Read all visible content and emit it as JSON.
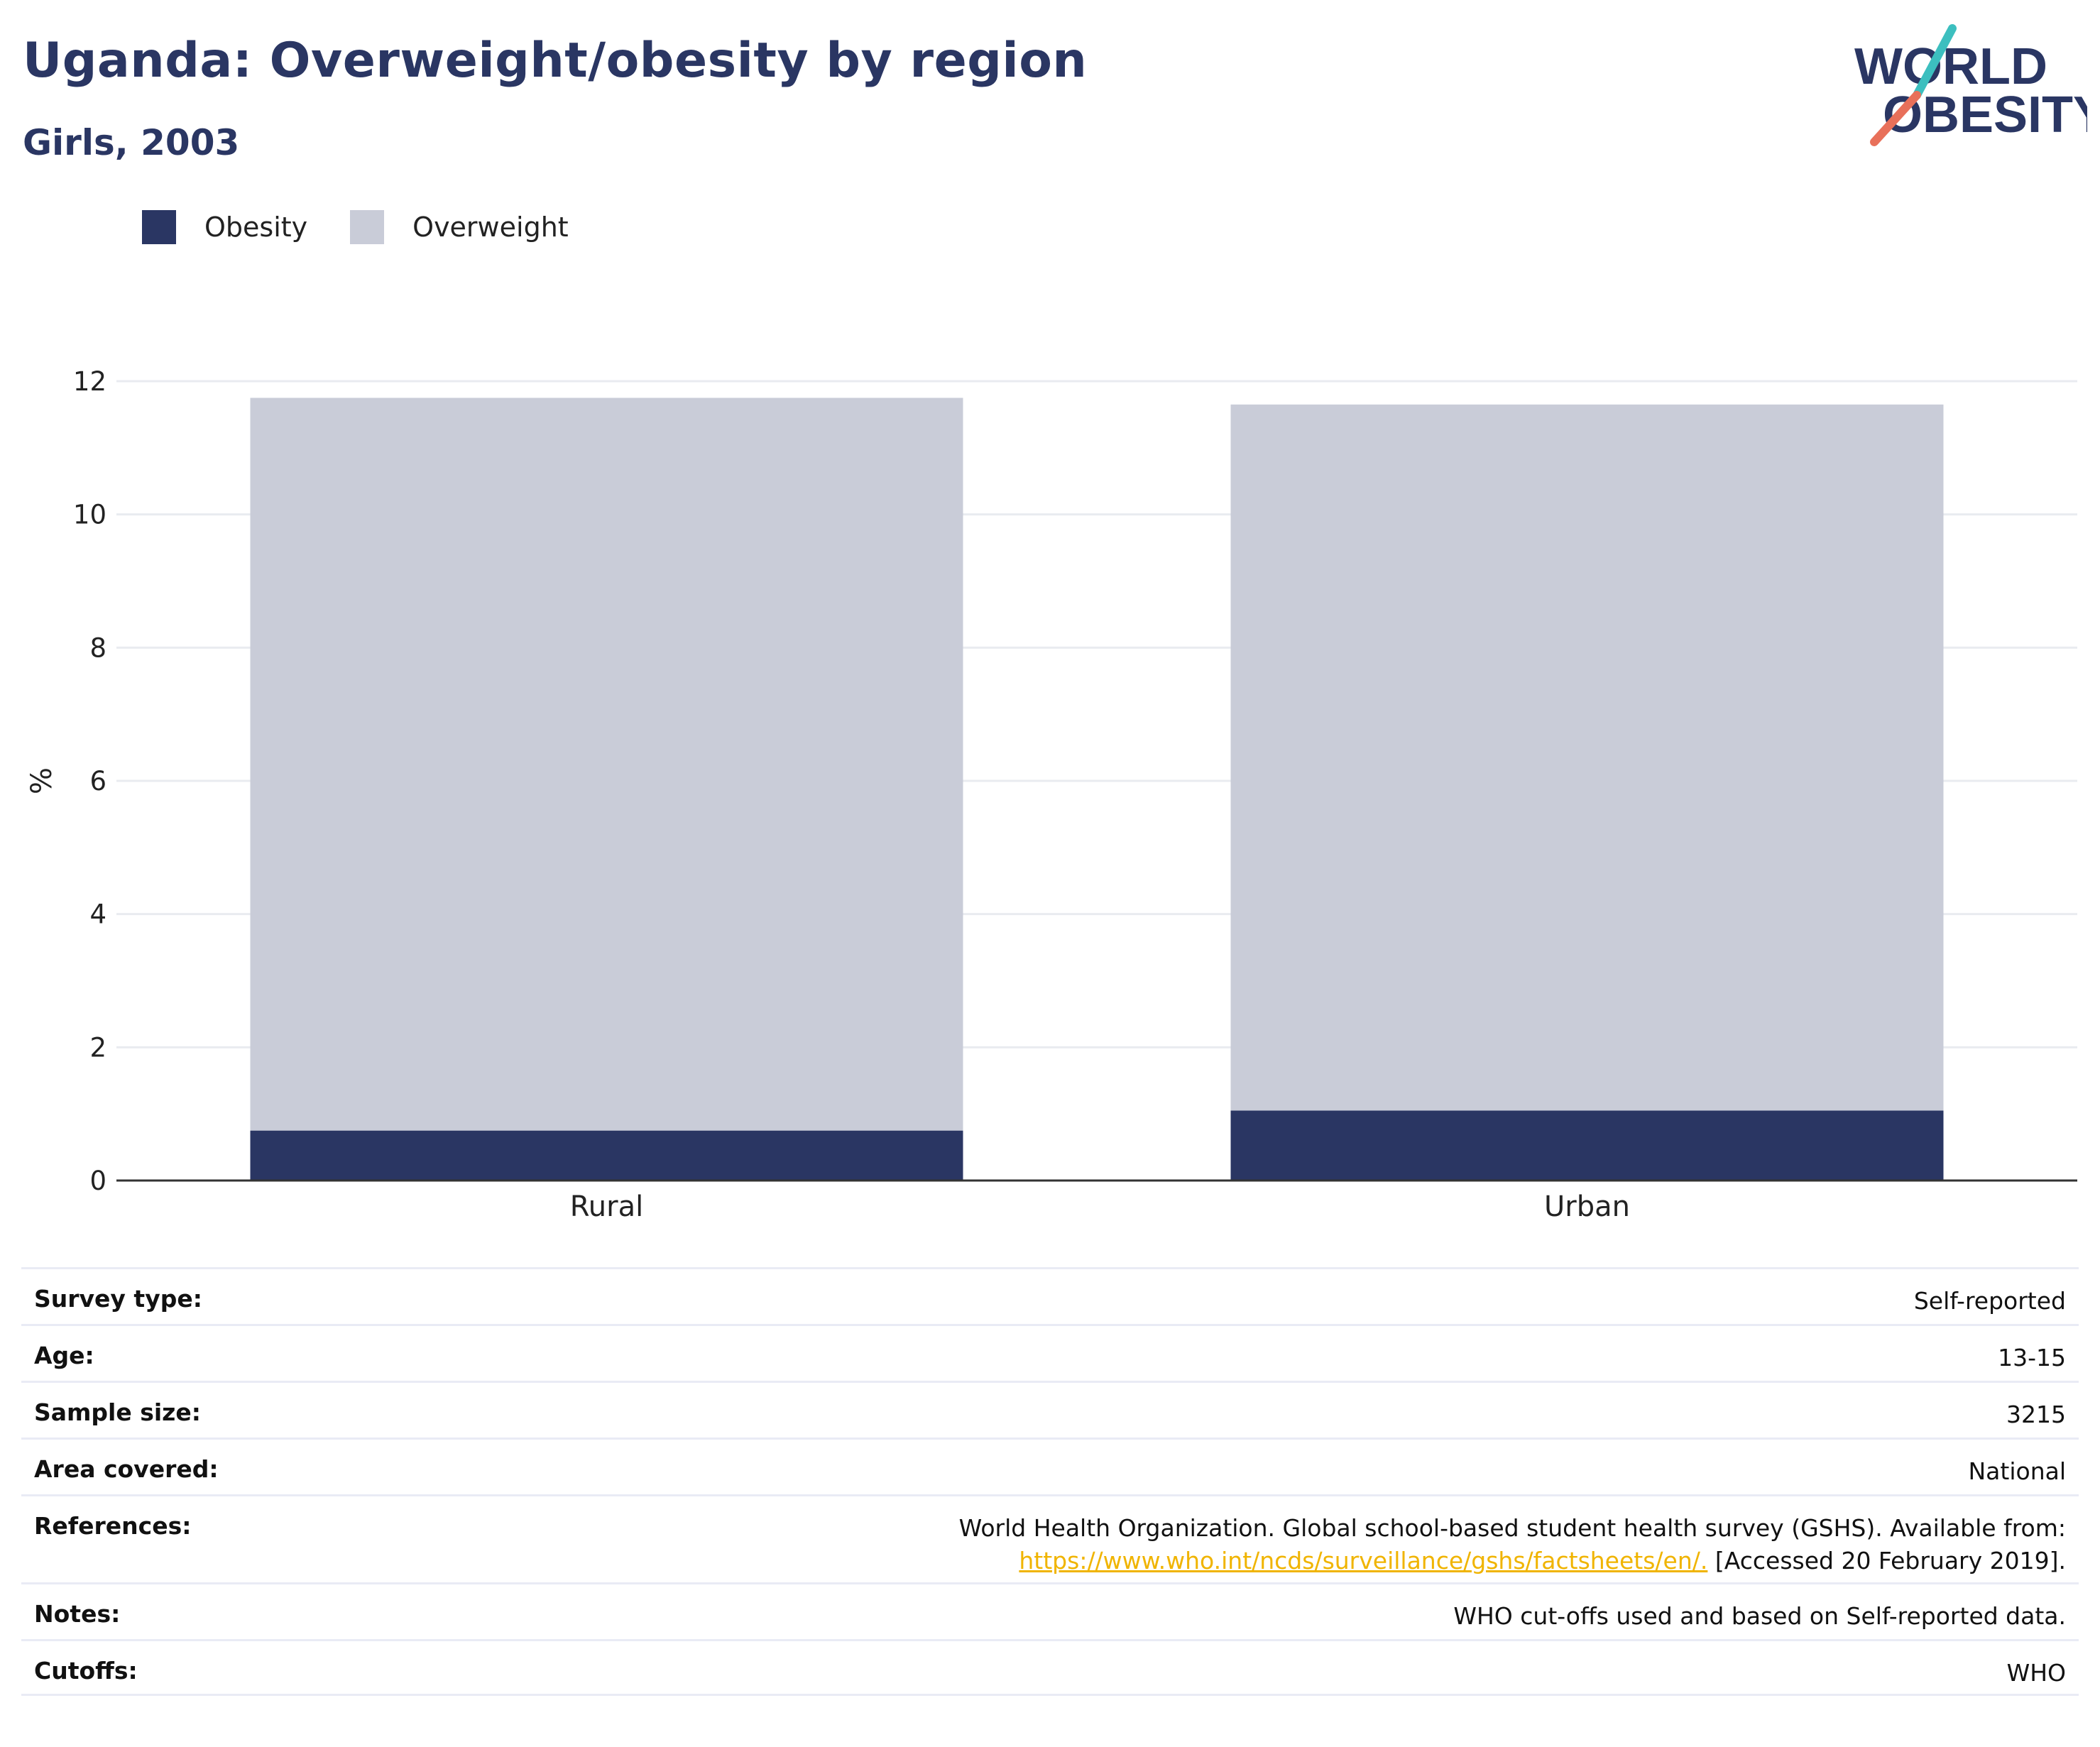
{
  "header": {
    "title": "Uganda: Overweight/obesity by region",
    "subtitle": "Girls, 2003"
  },
  "logo": {
    "line1": "WORLD",
    "line2": "OBESITY",
    "colors": {
      "text": "#2a3663",
      "slash_top": "#3cbfbf",
      "slash_bottom": "#e8705a"
    }
  },
  "colors": {
    "obesity": "#2a3663",
    "overweight": "#c9ccd8",
    "grid": "#e9ebf0",
    "axis": "#333333"
  },
  "chart_data": {
    "type": "bar",
    "stacked": true,
    "categories": [
      "Rural",
      "Urban"
    ],
    "series": [
      {
        "name": "Obesity",
        "values": [
          0.75,
          1.05
        ]
      },
      {
        "name": "Overweight",
        "values": [
          11.0,
          10.6
        ]
      }
    ],
    "ylabel": "%",
    "ylim": [
      0,
      12
    ],
    "yticks": [
      0,
      2,
      4,
      6,
      8,
      10,
      12
    ],
    "grid": true,
    "legend_position": "top-left"
  },
  "info_table": [
    {
      "label": "Survey type:",
      "value": "Self-reported"
    },
    {
      "label": "Age:",
      "value": "13-15"
    },
    {
      "label": "Sample size:",
      "value": "3215"
    },
    {
      "label": "Area covered:",
      "value": "National"
    },
    {
      "label": "References:",
      "value": "World Health Organization. Global school-based student health survey (GSHS). Available from:",
      "link": "https://www.who.int/ncds/surveillance/gshs/factsheets/en/.",
      "value_after": " [Accessed 20 February 2019]."
    },
    {
      "label": "Notes:",
      "value": "WHO cut-offs used and based on Self-reported data."
    },
    {
      "label": "Cutoffs:",
      "value": "WHO"
    }
  ]
}
